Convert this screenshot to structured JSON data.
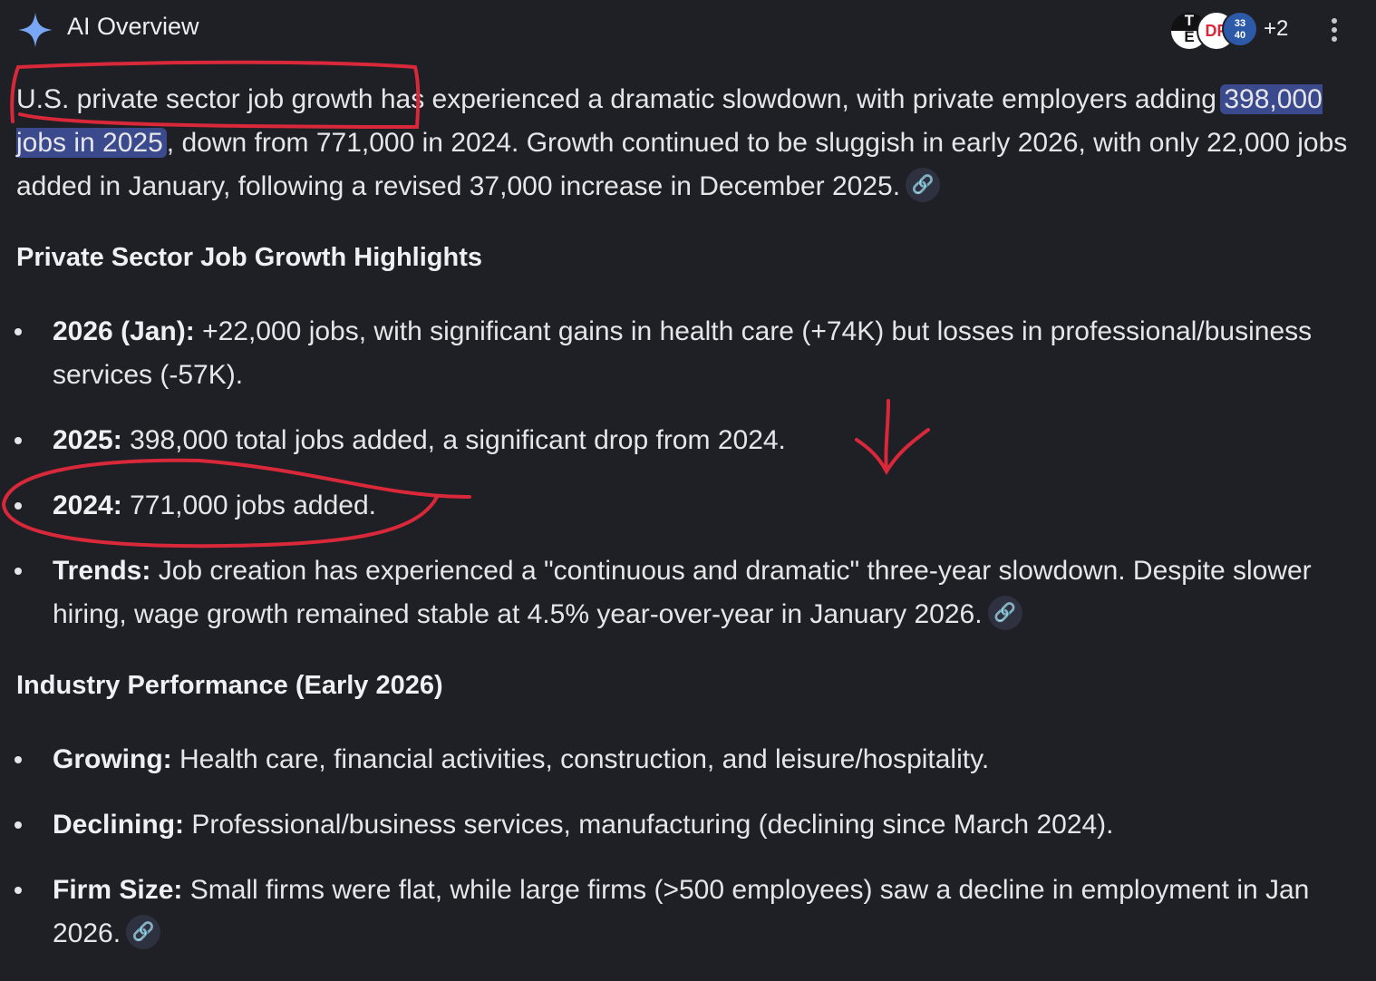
{
  "header": {
    "title": "AI Overview",
    "icon": "sparkle-icon",
    "sources_more": "+2",
    "sources": [
      "T E",
      "DP",
      "33 40"
    ]
  },
  "intro": {
    "before": "U.S. private sector job growth has experienced a dramatic slowdown, with private employers adding ",
    "highlight": "398,000 jobs in 2025",
    "after": ", down from 771,000 in 2024. Growth continued to be sluggish in early 2026, with only 22,000 jobs added in January, following a revised 37,000 increase in December 2025."
  },
  "section1": {
    "heading": "Private Sector Job Growth Highlights",
    "items": [
      {
        "label": "2026 (Jan):",
        "text": " +22,000 jobs, with significant gains in health care (+74K) but losses in professional/business services (-57K)."
      },
      {
        "label": "2025:",
        "text": " 398,000 total jobs added, a significant drop from 2024."
      },
      {
        "label": "2024:",
        "text": " 771,000 jobs added."
      },
      {
        "label": "Trends:",
        "text": " Job creation has experienced a \"continuous and dramatic\" three-year slowdown. Despite slower hiring, wage growth remained stable at 4.5% year-over-year in January 2026."
      }
    ]
  },
  "section2": {
    "heading": "Industry Performance (Early 2026)",
    "items": [
      {
        "label": "Growing:",
        "text": " Health care, financial activities, construction, and leisure/hospitality."
      },
      {
        "label": "Declining:",
        "text": " Professional/business services, manufacturing (declining since March 2024)."
      },
      {
        "label": "Firm Size:",
        "text": " Small firms were flat, while large firms (>500 employees) saw a decline in employment in Jan 2026."
      }
    ]
  },
  "colors": {
    "background": "#1f2025",
    "highlight": "#3a4a8c",
    "annotation": "#d8283a",
    "sparkle": "#7aa7f5"
  }
}
